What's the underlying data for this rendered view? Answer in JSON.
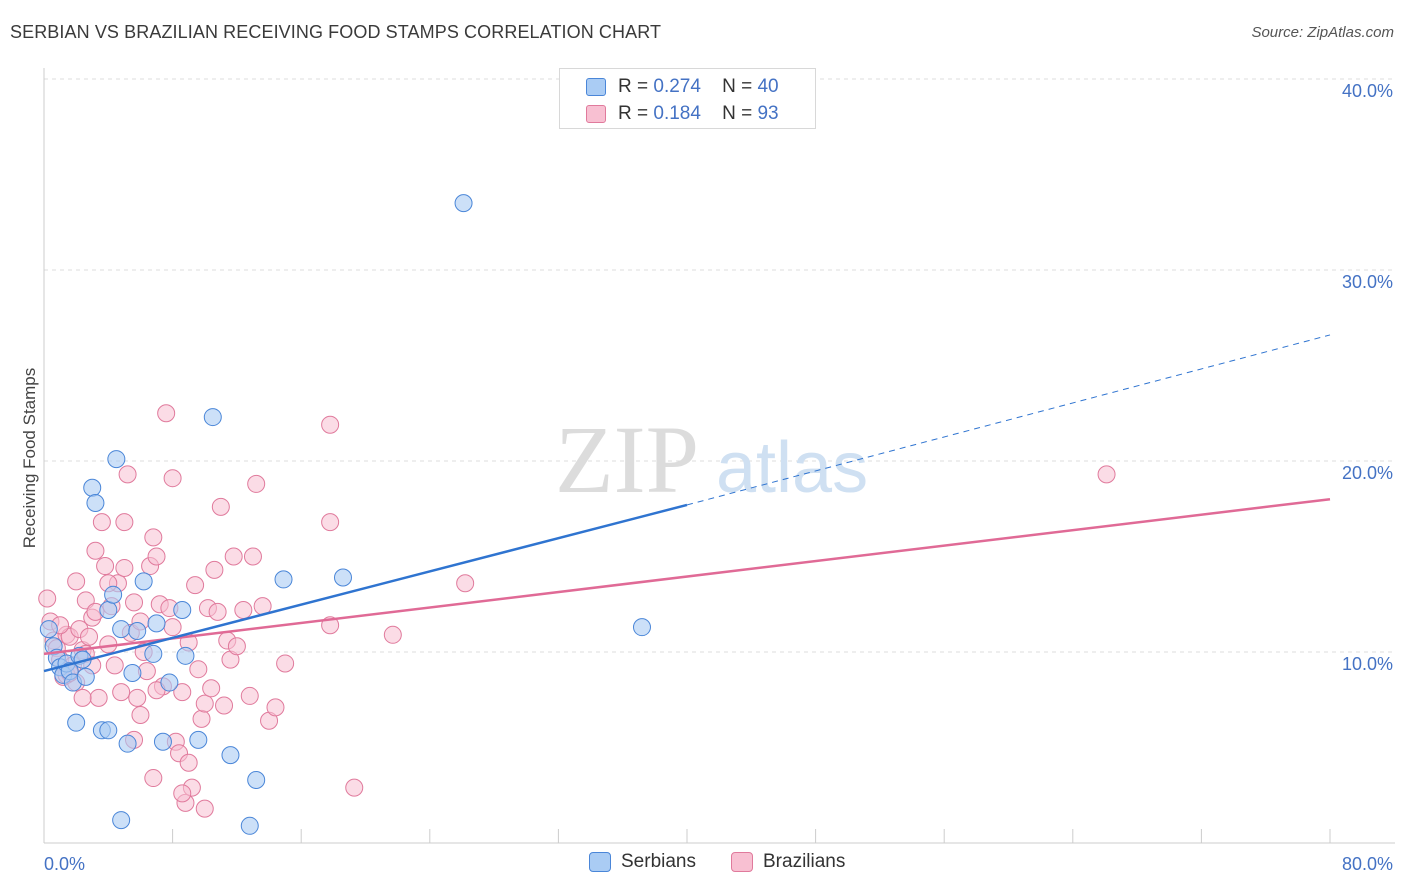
{
  "title": "SERBIAN VS BRAZILIAN RECEIVING FOOD STAMPS CORRELATION CHART",
  "source": "Source: ZipAtlas.com",
  "watermark": {
    "zip": "ZIP",
    "atlas": "atlas"
  },
  "legend_top": [
    {
      "r_label": "R =",
      "r_value": "0.274",
      "n_label": "N =",
      "n_value": "40"
    },
    {
      "r_label": "R =",
      "r_value": "0.184",
      "n_label": "N =",
      "n_value": "93"
    }
  ],
  "legend_bottom": {
    "serbians": "Serbians",
    "brazilians": "Brazilians"
  },
  "colors": {
    "serbian_fill": "#aaccf4",
    "serbian_stroke": "#4a86d8",
    "serbian_line": "#2f74d0",
    "brazilian_fill": "#f8c0d2",
    "brazilian_stroke": "#e07a9c",
    "brazilian_line": "#e06a96",
    "tick_text": "#4472c4",
    "grid": "#dddddd"
  },
  "chart_data": {
    "type": "scatter",
    "title": "SERBIAN VS BRAZILIAN RECEIVING FOOD STAMPS CORRELATION CHART",
    "xlabel": "",
    "ylabel": "Receiving Food Stamps",
    "xlim": [
      0,
      80
    ],
    "ylim": [
      0,
      40
    ],
    "x_tick_labels": [
      "0.0%",
      "80.0%"
    ],
    "y_ticks": [
      10,
      20,
      30,
      40
    ],
    "y_tick_labels": [
      "10.0%",
      "20.0%",
      "30.0%",
      "40.0%"
    ],
    "grid": true,
    "legend_placement": "top-center",
    "series": [
      {
        "name": "Serbians",
        "r": 0.274,
        "n": 40,
        "trend": {
          "x0": 0,
          "y0": 9.0,
          "x1": 40,
          "y1": 17.7,
          "dashed_to_x": 80,
          "dashed_to_y": 26.6
        },
        "points": [
          [
            0.3,
            11.2
          ],
          [
            0.6,
            10.3
          ],
          [
            0.8,
            9.7
          ],
          [
            1.0,
            9.2
          ],
          [
            1.2,
            8.8
          ],
          [
            1.4,
            9.4
          ],
          [
            1.6,
            9.0
          ],
          [
            1.8,
            8.4
          ],
          [
            2.0,
            6.3
          ],
          [
            2.2,
            9.8
          ],
          [
            2.4,
            9.6
          ],
          [
            2.6,
            8.7
          ],
          [
            3.0,
            18.6
          ],
          [
            3.2,
            17.8
          ],
          [
            3.6,
            5.9
          ],
          [
            4.0,
            5.9
          ],
          [
            4.0,
            12.2
          ],
          [
            4.3,
            13.0
          ],
          [
            4.5,
            20.1
          ],
          [
            4.8,
            11.2
          ],
          [
            5.2,
            5.2
          ],
          [
            5.5,
            8.9
          ],
          [
            5.8,
            11.1
          ],
          [
            6.2,
            13.7
          ],
          [
            6.8,
            9.9
          ],
          [
            7.0,
            11.5
          ],
          [
            7.4,
            5.3
          ],
          [
            7.8,
            8.4
          ],
          [
            8.6,
            12.2
          ],
          [
            8.8,
            9.8
          ],
          [
            9.6,
            5.4
          ],
          [
            10.5,
            22.3
          ],
          [
            11.6,
            4.6
          ],
          [
            12.8,
            0.9
          ],
          [
            13.2,
            3.3
          ],
          [
            14.9,
            13.8
          ],
          [
            18.6,
            13.9
          ],
          [
            26.1,
            33.5
          ],
          [
            37.2,
            11.3
          ],
          [
            4.8,
            1.2
          ]
        ]
      },
      {
        "name": "Brazilians",
        "r": 0.184,
        "n": 93,
        "trend": {
          "x0": 0,
          "y0": 9.9,
          "x1": 80,
          "y1": 18.0
        },
        "points": [
          [
            0.2,
            12.8
          ],
          [
            0.4,
            11.6
          ],
          [
            0.6,
            10.6
          ],
          [
            0.8,
            10.2
          ],
          [
            1.0,
            9.6
          ],
          [
            1.2,
            8.7
          ],
          [
            1.4,
            10.9
          ],
          [
            1.6,
            10.8
          ],
          [
            1.8,
            9.3
          ],
          [
            2.0,
            8.4
          ],
          [
            2.2,
            11.2
          ],
          [
            2.4,
            10.1
          ],
          [
            2.6,
            12.7
          ],
          [
            2.8,
            10.8
          ],
          [
            3.0,
            11.8
          ],
          [
            3.2,
            15.3
          ],
          [
            3.4,
            7.6
          ],
          [
            3.6,
            16.8
          ],
          [
            3.8,
            14.5
          ],
          [
            4.0,
            10.4
          ],
          [
            4.2,
            12.4
          ],
          [
            4.4,
            9.3
          ],
          [
            4.6,
            13.6
          ],
          [
            4.8,
            7.9
          ],
          [
            5.0,
            16.8
          ],
          [
            5.2,
            19.3
          ],
          [
            5.4,
            11.0
          ],
          [
            5.6,
            12.6
          ],
          [
            5.8,
            7.6
          ],
          [
            6.0,
            6.7
          ],
          [
            6.2,
            10.0
          ],
          [
            6.4,
            9.0
          ],
          [
            6.6,
            14.5
          ],
          [
            6.8,
            16.0
          ],
          [
            7.0,
            15.0
          ],
          [
            7.2,
            12.5
          ],
          [
            7.4,
            8.2
          ],
          [
            7.6,
            22.5
          ],
          [
            7.8,
            12.3
          ],
          [
            8.0,
            19.1
          ],
          [
            8.2,
            5.3
          ],
          [
            8.4,
            4.7
          ],
          [
            8.6,
            7.9
          ],
          [
            8.8,
            2.1
          ],
          [
            9.0,
            4.2
          ],
          [
            9.2,
            2.9
          ],
          [
            9.4,
            13.5
          ],
          [
            9.6,
            9.1
          ],
          [
            9.8,
            6.5
          ],
          [
            10.0,
            7.3
          ],
          [
            10.2,
            12.3
          ],
          [
            10.4,
            8.1
          ],
          [
            10.6,
            14.3
          ],
          [
            10.8,
            12.1
          ],
          [
            11.0,
            17.6
          ],
          [
            11.2,
            7.2
          ],
          [
            11.4,
            10.6
          ],
          [
            11.6,
            9.6
          ],
          [
            11.8,
            15.0
          ],
          [
            12.0,
            10.3
          ],
          [
            12.4,
            12.2
          ],
          [
            12.8,
            7.7
          ],
          [
            13.0,
            15.0
          ],
          [
            13.2,
            18.8
          ],
          [
            13.6,
            12.4
          ],
          [
            14.0,
            6.4
          ],
          [
            14.4,
            7.1
          ],
          [
            15.0,
            9.4
          ],
          [
            17.8,
            21.9
          ],
          [
            17.8,
            16.8
          ],
          [
            17.8,
            11.4
          ],
          [
            19.3,
            2.9
          ],
          [
            21.7,
            10.9
          ],
          [
            26.2,
            13.6
          ],
          [
            66.1,
            19.3
          ],
          [
            1.0,
            11.4
          ],
          [
            1.4,
            8.8
          ],
          [
            2.0,
            13.7
          ],
          [
            2.6,
            9.9
          ],
          [
            3.2,
            12.1
          ],
          [
            4.0,
            13.6
          ],
          [
            5.0,
            14.4
          ],
          [
            6.0,
            11.6
          ],
          [
            7.0,
            8.0
          ],
          [
            8.0,
            11.3
          ],
          [
            9.0,
            10.5
          ],
          [
            3.0,
            9.3
          ],
          [
            1.6,
            8.9
          ],
          [
            2.4,
            7.6
          ],
          [
            5.6,
            5.4
          ],
          [
            6.8,
            3.4
          ],
          [
            8.6,
            2.6
          ],
          [
            10.0,
            1.8
          ]
        ]
      }
    ]
  }
}
